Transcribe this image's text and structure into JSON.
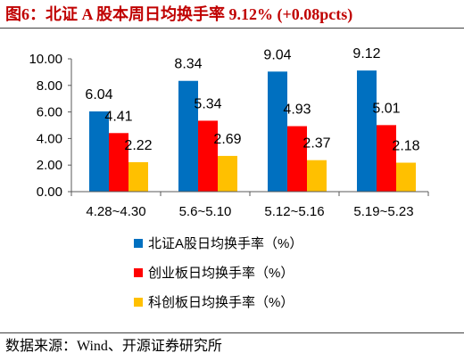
{
  "title": "图6：北证 A 股本周日均换手率 9.12% (+0.08pcts)",
  "source": "数据来源：Wind、开源证券研究所",
  "colors": {
    "title": "#C00000",
    "axis": "#595959",
    "rule": "#404040"
  },
  "chart_data": {
    "type": "bar",
    "categories": [
      "4.28~4.30",
      "5.6~5.10",
      "5.12~5.16",
      "5.19~5.23"
    ],
    "series": [
      {
        "name": "北证A股日均换手率（%）",
        "values": [
          6.04,
          8.34,
          9.04,
          9.12
        ],
        "color": "#0070C0"
      },
      {
        "name": "创业板日均换手率（%）",
        "values": [
          4.41,
          5.34,
          4.93,
          5.01
        ],
        "color": "#FF0000"
      },
      {
        "name": "科创板日均换手率（%）",
        "values": [
          2.22,
          2.69,
          2.37,
          2.18
        ],
        "color": "#FFC000"
      }
    ],
    "yticks": [
      "0.00",
      "2.00",
      "4.00",
      "6.00",
      "8.00",
      "10.00"
    ],
    "ylim": [
      0,
      10
    ],
    "data_labels": true,
    "grid": false,
    "legend": "bottom"
  }
}
